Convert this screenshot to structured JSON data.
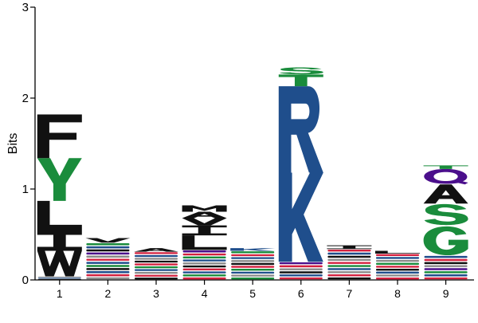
{
  "chart_data": {
    "type": "sequence-logo",
    "title": "",
    "xlabel": "",
    "ylabel": "Bits",
    "ylim": [
      0,
      3
    ],
    "yticks": [
      "0",
      "1",
      "2",
      "3"
    ],
    "categories": [
      "1",
      "2",
      "3",
      "4",
      "5",
      "6",
      "7",
      "8",
      "9"
    ],
    "colors": {
      "black": "#111111",
      "green": "#1a8c3c",
      "blue": "#1f4e8c",
      "purple": "#4b0f8c",
      "red": "#d3213f",
      "gray": "#8a8a8a"
    },
    "positions": [
      {
        "pos": "1",
        "letters": [
          {
            "letter": "W",
            "bits": 0.28,
            "color": "black"
          },
          {
            "letter": "I",
            "bits": 0.22,
            "color": "black"
          },
          {
            "letter": "L",
            "bits": 0.33,
            "color": "black"
          },
          {
            "letter": "Y",
            "bits": 0.47,
            "color": "green"
          },
          {
            "letter": "F",
            "bits": 0.48,
            "color": "black"
          }
        ],
        "minor": {
          "bits": 0.04,
          "colors": [
            "black",
            "blue",
            "gray"
          ]
        }
      },
      {
        "pos": "2",
        "letters": [
          {
            "letter": "V",
            "bits": 0.05,
            "color": "black"
          }
        ],
        "minor": {
          "bits": 0.41,
          "colors": [
            "gray",
            "red",
            "blue",
            "black",
            "green",
            "blue",
            "red",
            "gray",
            "purple",
            "black",
            "blue",
            "green"
          ]
        }
      },
      {
        "pos": "3",
        "letters": [
          {
            "letter": "A",
            "bits": 0.04,
            "color": "black"
          }
        ],
        "minor": {
          "bits": 0.31,
          "colors": [
            "black",
            "red",
            "gray",
            "blue",
            "green",
            "red",
            "black",
            "gray",
            "blue",
            "red"
          ]
        }
      },
      {
        "pos": "4",
        "letters": [
          {
            "letter": "L",
            "bits": 0.16,
            "color": "black"
          },
          {
            "letter": "I",
            "bits": 0.11,
            "color": "black"
          },
          {
            "letter": "V",
            "bits": 0.08,
            "color": "black"
          },
          {
            "letter": "A",
            "bits": 0.07,
            "color": "black"
          },
          {
            "letter": "M",
            "bits": 0.07,
            "color": "black"
          }
        ],
        "minor": {
          "bits": 0.33,
          "colors": [
            "red",
            "green",
            "blue",
            "red",
            "black",
            "gray",
            "blue",
            "green",
            "red",
            "purple"
          ]
        }
      },
      {
        "pos": "5",
        "letters": [
          {
            "letter": "K",
            "bits": 0.03,
            "color": "blue"
          }
        ],
        "minor": {
          "bits": 0.32,
          "colors": [
            "green",
            "gray",
            "blue",
            "green",
            "red",
            "black",
            "gray",
            "blue",
            "red",
            "green"
          ]
        }
      },
      {
        "pos": "6",
        "letters": [
          {
            "letter": "K",
            "bits": 0.98,
            "color": "blue"
          },
          {
            "letter": "R",
            "bits": 0.95,
            "color": "blue"
          },
          {
            "letter": "T",
            "bits": 0.13,
            "color": "green"
          },
          {
            "letter": "S",
            "bits": 0.08,
            "color": "green"
          }
        ],
        "minor": {
          "bits": 0.2,
          "colors": [
            "red",
            "blue",
            "black",
            "gray",
            "red",
            "purple"
          ]
        }
      },
      {
        "pos": "7",
        "letters": [
          {
            "letter": "I",
            "bits": 0.04,
            "color": "black"
          }
        ],
        "minor": {
          "bits": 0.34,
          "colors": [
            "black",
            "red",
            "gray",
            "blue",
            "green",
            "red",
            "gray",
            "black",
            "blue",
            "red"
          ]
        }
      },
      {
        "pos": "8",
        "letters": [
          {
            "letter": "L",
            "bits": 0.03,
            "color": "black"
          }
        ],
        "minor": {
          "bits": 0.29,
          "colors": [
            "red",
            "gray",
            "blue",
            "black",
            "red",
            "green",
            "gray",
            "blue",
            "red"
          ]
        }
      },
      {
        "pos": "9",
        "letters": [
          {
            "letter": "G",
            "bits": 0.33,
            "color": "green"
          },
          {
            "letter": "S",
            "bits": 0.24,
            "color": "green"
          },
          {
            "letter": "A",
            "bits": 0.21,
            "color": "black"
          },
          {
            "letter": "Q",
            "bits": 0.17,
            "color": "purple"
          },
          {
            "letter": "T",
            "bits": 0.04,
            "color": "green"
          }
        ],
        "minor": {
          "bits": 0.27,
          "colors": [
            "red",
            "blue",
            "green",
            "purple",
            "gray",
            "black",
            "red",
            "blue"
          ]
        }
      }
    ]
  }
}
